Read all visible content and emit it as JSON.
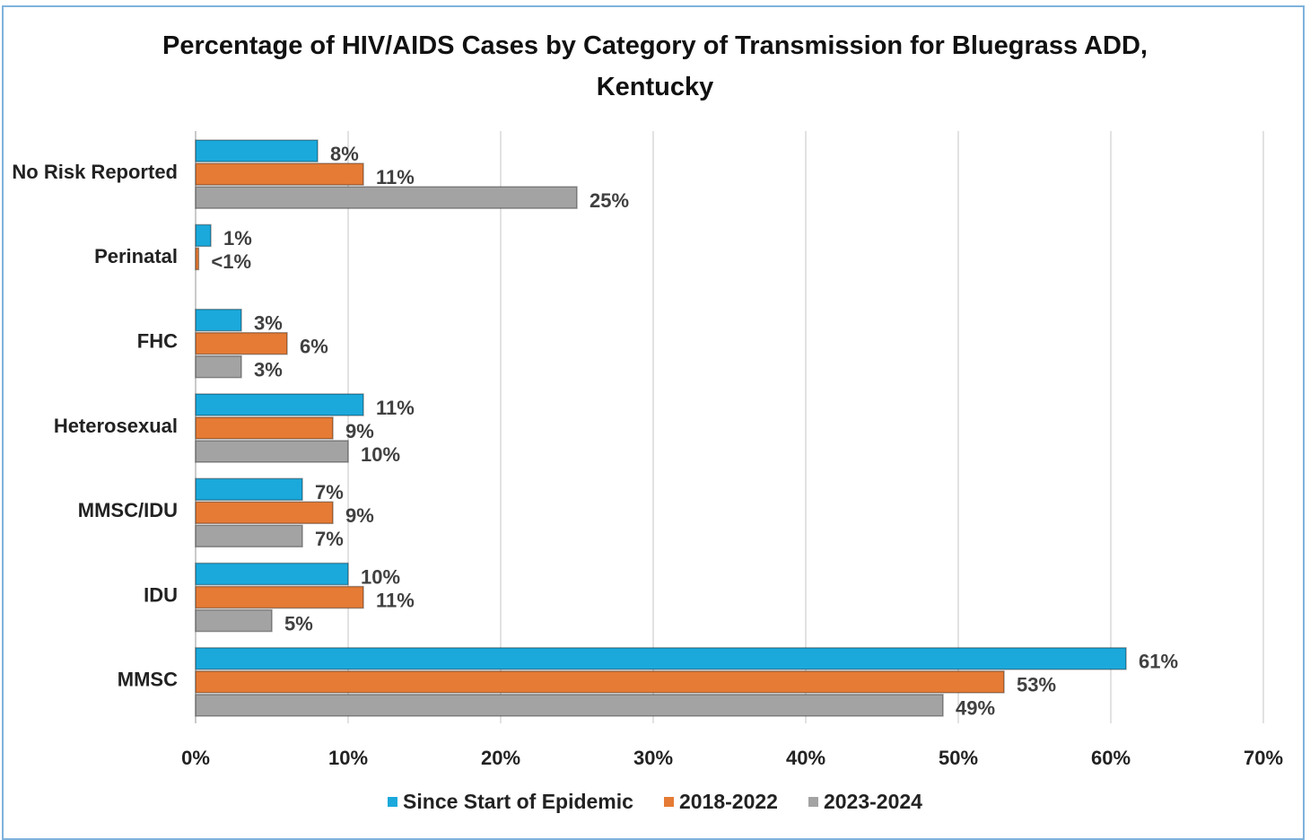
{
  "chart_data": {
    "type": "barh",
    "title": "Percentage of HIV/AIDS Cases by Category of Transmission  for Bluegrass ADD, Kentucky",
    "categories": [
      "No Risk Reported",
      "Perinatal",
      "FHC",
      "Heterosexual",
      "MMSC/IDU",
      "IDU",
      "MMSC"
    ],
    "series": [
      {
        "name": "Since Start of Epidemic",
        "color": "#1ba9dc",
        "values": [
          8,
          1,
          3,
          11,
          7,
          10,
          61
        ],
        "value_labels": [
          "8%",
          "1%",
          "3%",
          "11%",
          "7%",
          "10%",
          "61%"
        ]
      },
      {
        "name": "2018-2022",
        "color": "#e57b35",
        "values": [
          11,
          0.2,
          6,
          9,
          9,
          11,
          53
        ],
        "value_labels": [
          "11%",
          "<1%",
          "6%",
          "9%",
          "9%",
          "11%",
          "53%"
        ]
      },
      {
        "name": "2023-2024",
        "color": "#a3a3a3",
        "values": [
          25,
          null,
          3,
          10,
          7,
          5,
          49
        ],
        "value_labels": [
          "25%",
          null,
          "3%",
          "10%",
          "7%",
          "5%",
          "49%"
        ]
      }
    ],
    "xlim": [
      0,
      70
    ],
    "xticks": [
      {
        "value": 0,
        "label": "0%"
      },
      {
        "value": 10,
        "label": "10%"
      },
      {
        "value": 20,
        "label": "20%"
      },
      {
        "value": 30,
        "label": "30%"
      },
      {
        "value": 40,
        "label": "40%"
      },
      {
        "value": 50,
        "label": "50%"
      },
      {
        "value": 60,
        "label": "60%"
      },
      {
        "value": 70,
        "label": "70%"
      }
    ],
    "grid": true,
    "legend": "bottom"
  }
}
